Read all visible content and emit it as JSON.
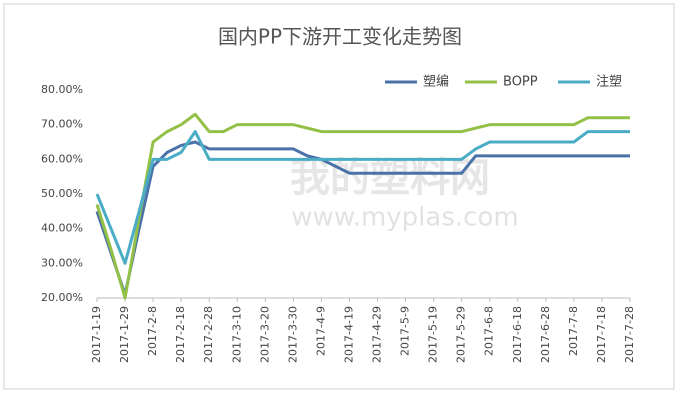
{
  "chart_data": {
    "type": "line",
    "title": "国内PP下游开工变化走势图",
    "categories": [
      "2017-1-19",
      null,
      "2017-1-29",
      null,
      "2017-2-8",
      null,
      "2017-2-18",
      null,
      "2017-2-28",
      null,
      "2017-3-10",
      null,
      "2017-3-20",
      null,
      "2017-3-30",
      null,
      "2017-4-9",
      null,
      "2017-4-19",
      null,
      "2017-4-29",
      null,
      "2017-5-9",
      null,
      "2017-5-19",
      null,
      "2017-5-29",
      null,
      "2017-6-8",
      null,
      "2017-6-18",
      null,
      "2017-6-28",
      null,
      "2017-7-8",
      null,
      "2017-7-18",
      null,
      "2017-7-28"
    ],
    "series": [
      {
        "name": "塑编",
        "color": "#4a72a8",
        "values": [
          45,
          33,
          21,
          40,
          58,
          62,
          64,
          65,
          63,
          63,
          63,
          63,
          63,
          63,
          63,
          61,
          60,
          58,
          56,
          56,
          56,
          56,
          56,
          56,
          56,
          56,
          56,
          61,
          61,
          61,
          61,
          61,
          61,
          61,
          61,
          61,
          61,
          61,
          61
        ]
      },
      {
        "name": "BOPP",
        "color": "#93c047",
        "values": [
          47,
          34,
          20,
          43,
          65,
          68,
          70,
          73,
          68,
          68,
          70,
          70,
          70,
          70,
          70,
          69,
          68,
          68,
          68,
          68,
          68,
          68,
          68,
          68,
          68,
          68,
          68,
          69,
          70,
          70,
          70,
          70,
          70,
          70,
          70,
          72,
          72,
          72,
          72
        ]
      },
      {
        "name": "注塑",
        "color": "#4bacc6",
        "values": [
          50,
          40,
          30,
          45,
          60,
          60,
          62,
          68,
          60,
          60,
          60,
          60,
          60,
          60,
          60,
          60,
          60,
          60,
          60,
          60,
          60,
          60,
          60,
          60,
          60,
          60,
          60,
          63,
          65,
          65,
          65,
          65,
          65,
          65,
          65,
          68,
          68,
          68,
          68
        ]
      }
    ],
    "ylim": [
      20,
      80
    ],
    "yticks": [
      {
        "value": 20,
        "label": "20.00%"
      },
      {
        "value": 30,
        "label": "30.00%"
      },
      {
        "value": 40,
        "label": "40.00%"
      },
      {
        "value": 50,
        "label": "50.00%"
      },
      {
        "value": 60,
        "label": "60.00%"
      },
      {
        "value": 70,
        "label": "70.00%"
      },
      {
        "value": 80,
        "label": "80.00%"
      }
    ],
    "grid": false,
    "legend": "top-right",
    "watermark": [
      "我的塑料网",
      "www.myplas.com"
    ]
  }
}
